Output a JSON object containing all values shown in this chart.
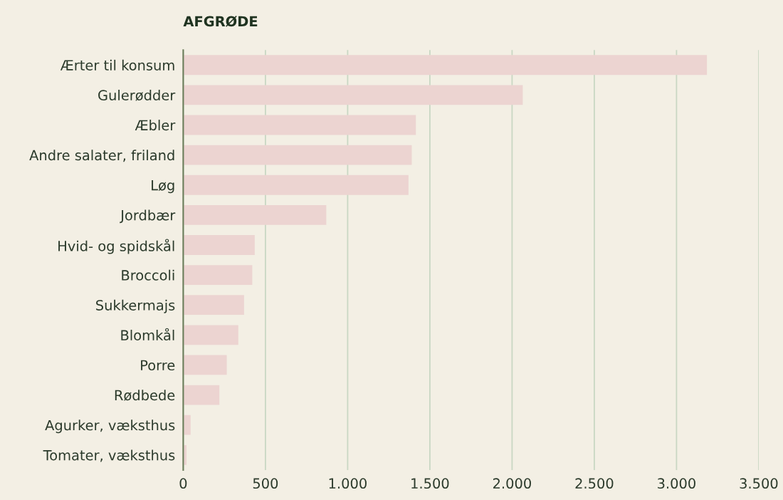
{
  "chart_data": {
    "type": "bar",
    "orientation": "horizontal",
    "title": "AFGRØDE",
    "categories": [
      "Ærter til konsum",
      "Gulerødder",
      "Æbler",
      "Andre salater, friland",
      "Løg",
      "Jordbær",
      "Hvid- og spidskål",
      "Broccoli",
      "Sukkermajs",
      "Blomkål",
      "Porre",
      "Rødbede",
      "Agurker, væksthus",
      "Tomater, væksthus"
    ],
    "values": [
      3185,
      2065,
      1415,
      1390,
      1370,
      870,
      435,
      420,
      370,
      335,
      265,
      220,
      45,
      20
    ],
    "color": "#ecd4d1",
    "xlim": [
      0,
      3500
    ],
    "xticks": [
      0,
      500,
      {
        "value": 1000,
        "label": "1.000"
      },
      {
        "value": 1500,
        "label": "1.500"
      },
      {
        "value": 2000,
        "label": "2.000"
      },
      {
        "value": 2500,
        "label": "2.500"
      },
      {
        "value": 3000,
        "label": "3.000"
      },
      {
        "value": 3500,
        "label": "3.500"
      }
    ],
    "grid": "x"
  }
}
